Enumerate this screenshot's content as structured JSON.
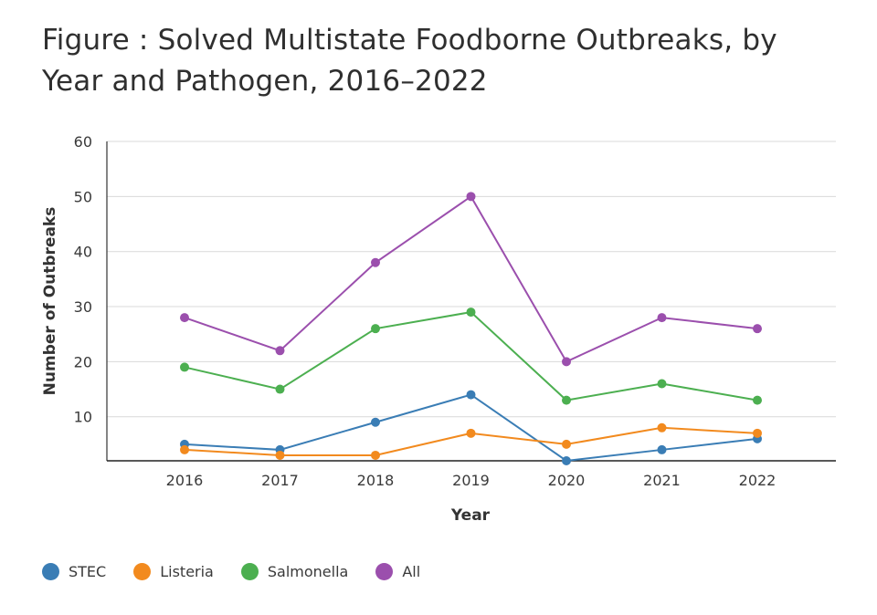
{
  "title": "Figure   : Solved Multistate Foodborne Outbreaks, by Year and Pathogen, 2016–2022",
  "chart_data": {
    "type": "line",
    "title": "Figure   : Solved Multistate Foodborne Outbreaks, by Year and Pathogen, 2016–2022",
    "xlabel": "Year",
    "ylabel": "Number of Outbreaks",
    "x": [
      "2016",
      "2017",
      "2018",
      "2019",
      "2020",
      "2021",
      "2022"
    ],
    "ylim": [
      2,
      60
    ],
    "yticks": [
      10,
      20,
      30,
      40,
      50,
      60
    ],
    "grid": true,
    "legend_position": "bottom-left",
    "series": [
      {
        "name": "STEC",
        "color": "#3a7db5",
        "values": [
          5,
          4,
          9,
          14,
          2,
          4,
          6
        ]
      },
      {
        "name": "Listeria",
        "color": "#f28a1e",
        "values": [
          4,
          3,
          3,
          7,
          5,
          8,
          7
        ]
      },
      {
        "name": "Salmonella",
        "color": "#4caf50",
        "values": [
          19,
          15,
          26,
          29,
          13,
          16,
          13
        ]
      },
      {
        "name": "All",
        "color": "#9b4fad",
        "values": [
          28,
          22,
          38,
          50,
          20,
          28,
          26
        ]
      }
    ]
  }
}
